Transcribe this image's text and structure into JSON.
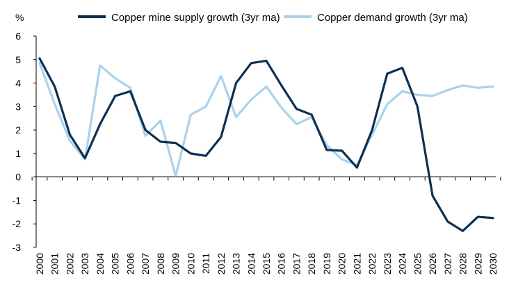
{
  "chart_data": {
    "type": "line",
    "title": "",
    "ylabel": "%",
    "xlabel": "",
    "ylim": [
      -3,
      6
    ],
    "yticks": [
      -3,
      -2,
      -1,
      0,
      1,
      2,
      3,
      4,
      5,
      6
    ],
    "categories": [
      "2000",
      "2001",
      "2002",
      "2003",
      "2004",
      "2005",
      "2006",
      "2007",
      "2008",
      "2009",
      "2010",
      "2011",
      "2012",
      "2013",
      "2014",
      "2015",
      "2016",
      "2017",
      "2018",
      "2019",
      "2020",
      "2021",
      "2022",
      "2023",
      "2024",
      "2025",
      "2026",
      "2027",
      "2028",
      "2029",
      "2030"
    ],
    "grid": false,
    "legend_position": "top",
    "series": [
      {
        "name": "Copper mine supply growth (3yr ma)",
        "color": "#0d2f52",
        "values": [
          5.05,
          3.85,
          1.8,
          0.8,
          2.25,
          3.45,
          3.65,
          2.0,
          1.5,
          1.45,
          1.0,
          0.9,
          1.7,
          4.0,
          4.85,
          4.95,
          3.9,
          2.9,
          2.65,
          1.15,
          1.12,
          0.4,
          2.0,
          4.4,
          4.65,
          3.0,
          -0.8,
          -1.9,
          -2.3,
          -1.7,
          -1.75
        ]
      },
      {
        "name": "Copper demand growth (3yr ma)",
        "color": "#a9d2ec",
        "values": [
          4.85,
          3.1,
          1.55,
          0.75,
          4.75,
          4.2,
          3.8,
          1.75,
          2.4,
          0.05,
          2.65,
          3.0,
          4.3,
          2.55,
          3.3,
          3.85,
          2.95,
          2.25,
          2.55,
          1.35,
          0.75,
          0.5,
          1.8,
          3.1,
          3.65,
          3.5,
          3.45,
          3.7,
          3.9,
          3.8,
          3.85
        ]
      }
    ]
  }
}
